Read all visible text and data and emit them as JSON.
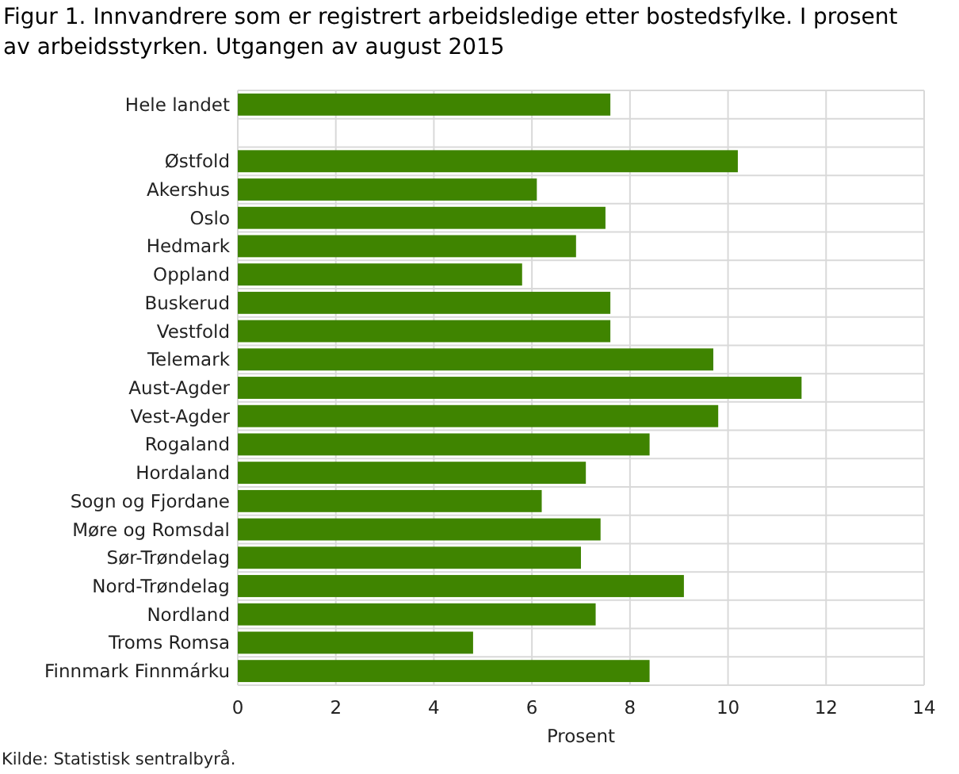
{
  "chart_data": {
    "type": "bar",
    "orientation": "horizontal",
    "title": "Figur 1. Innvandrere som er registrert arbeidsledige etter bostedsfylke. I prosent av arbeidsstyrken. Utgangen av august 2015",
    "xlabel": "Prosent",
    "annotations": [
      "Kilde: Statistisk sentralbyrå."
    ],
    "categories": [
      "Hele landet",
      null,
      "Østfold",
      "Akershus",
      "Oslo",
      "Hedmark",
      "Oppland",
      "Buskerud",
      "Vestfold",
      "Telemark",
      "Aust-Agder",
      "Vest-Agder",
      "Rogaland",
      "Hordaland",
      "Sogn og Fjordane",
      "Møre og Romsdal",
      "Sør-Trøndelag",
      "Nord-Trøndelag",
      "Nordland",
      "Troms Romsa",
      "Finnmark Finnmárku"
    ],
    "values": [
      7.6,
      null,
      10.2,
      6.1,
      7.5,
      6.9,
      5.8,
      7.6,
      7.6,
      9.7,
      11.5,
      9.8,
      8.4,
      7.1,
      6.2,
      7.4,
      7.0,
      9.1,
      7.3,
      4.8,
      8.4
    ],
    "color": "#3f8400",
    "xlim": [
      0,
      14
    ],
    "xticks": [
      0,
      2,
      4,
      6,
      8,
      10,
      12,
      14
    ],
    "grid": true
  }
}
